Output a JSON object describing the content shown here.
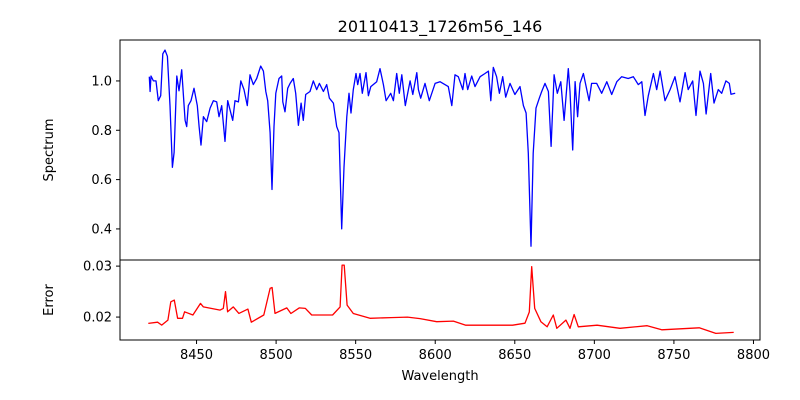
{
  "chart_data": [
    {
      "type": "line",
      "title": "20110413_1726m56_146",
      "xlabel": "",
      "ylabel": "Spectrum",
      "xlim": [
        8401.9,
        8804.1
      ],
      "ylim": [
        0.274,
        1.166
      ],
      "yticks": [
        "0.4",
        "0.6",
        "0.8",
        "1.0"
      ],
      "xticks": [],
      "grid": false,
      "series": [
        {
          "name": "spectrum",
          "color": "#0000ff",
          "x": [
            8420.3,
            8420.8,
            8421.4,
            8422.9,
            8424.5,
            8426.0,
            8427.5,
            8428.8,
            8430.2,
            8431.7,
            8433.3,
            8434.8,
            8435.9,
            8437.6,
            8439.0,
            8440.7,
            8442.8,
            8443.8,
            8444.8,
            8446.5,
            8448.4,
            8450.5,
            8451.6,
            8452.8,
            8454.3,
            8456.4,
            8458.5,
            8460.6,
            8462.7,
            8464.1,
            8465.8,
            8467.9,
            8469.6,
            8472.7,
            8474.2,
            8476.3,
            8477.8,
            8479.8,
            8481.9,
            8483.6,
            8485.7,
            8487.8,
            8490.3,
            8492.0,
            8493.5,
            8494.7,
            8496.2,
            8497.4,
            8498.7,
            8499.8,
            8501.8,
            8503.5,
            8504.2,
            8505.6,
            8507.3,
            8508.8,
            8510.8,
            8512.3,
            8514.0,
            8515.7,
            8517.1,
            8518.6,
            8521.3,
            8523.4,
            8525.5,
            8527.2,
            8529.7,
            8531.8,
            8533.5,
            8536.0,
            8538.1,
            8539.5,
            8541.2,
            8542.7,
            8544.4,
            8545.8,
            8547.1,
            8548.5,
            8550.2,
            8551.3,
            8552.7,
            8554.2,
            8556.5,
            8558.0,
            8559.5,
            8563.2,
            8565.3,
            8567.4,
            8569.1,
            8572.0,
            8573.7,
            8575.8,
            8577.4,
            8579.0,
            8581.2,
            8584.2,
            8585.9,
            8588.4,
            8589.4,
            8590.9,
            8593.6,
            8596.3,
            8599.9,
            8603.0,
            8608.2,
            8610.4,
            8612.4,
            8614.5,
            8617.3,
            8618.7,
            8620.4,
            8622.9,
            8625.0,
            8628.2,
            8631.3,
            8633.4,
            8634.9,
            8636.5,
            8638.6,
            8640.3,
            8642.4,
            8644.3,
            8647.0,
            8650.1,
            8653.3,
            8655.4,
            8657.1,
            8658.5,
            8660.2,
            8661.6,
            8663.3,
            8665.4,
            8666.9,
            8669.0,
            8671.1,
            8672.8,
            8674.7,
            8676.7,
            8678.9,
            8681.0,
            8683.6,
            8684.7,
            8686.4,
            8687.9,
            8689.5,
            8691.0,
            8693.1,
            8696.7,
            8698.3,
            8701.5,
            8704.6,
            8707.8,
            8710.9,
            8714.1,
            8717.2,
            8721.3,
            8724.5,
            8727.6,
            8729.8,
            8731.8,
            8733.9,
            8737.1,
            8739.2,
            8741.3,
            8744.4,
            8747.6,
            8750.7,
            8753.8,
            8757.0,
            8759.0,
            8761.8,
            8763.9,
            8766.4,
            8768.5,
            8770.2,
            8773.1,
            8775.2,
            8777.9,
            8780.0,
            8782.7,
            8784.8,
            8785.9,
            8788.5
          ],
          "y": [
            1.017,
            0.957,
            1.02,
            1.0,
            1.0,
            0.92,
            0.94,
            1.11,
            1.125,
            1.1,
            0.9,
            0.65,
            0.71,
            1.02,
            0.96,
            1.045,
            0.84,
            0.815,
            0.9,
            0.92,
            0.97,
            0.9,
            0.815,
            0.74,
            0.855,
            0.835,
            0.89,
            0.92,
            0.915,
            0.855,
            0.9,
            0.755,
            0.92,
            0.84,
            0.92,
            0.915,
            1.0,
            0.965,
            0.9,
            1.025,
            0.985,
            1.01,
            1.06,
            1.04,
            0.957,
            0.92,
            0.79,
            0.56,
            0.815,
            0.95,
            1.01,
            1.02,
            0.915,
            0.875,
            0.97,
            0.99,
            1.01,
            0.95,
            0.82,
            0.91,
            0.84,
            0.945,
            0.957,
            1.0,
            0.965,
            0.99,
            0.957,
            0.985,
            0.93,
            0.91,
            0.815,
            0.79,
            0.4,
            0.65,
            0.855,
            0.95,
            0.87,
            0.965,
            1.03,
            0.985,
            1.03,
            0.95,
            1.034,
            0.94,
            0.977,
            0.997,
            1.05,
            0.985,
            0.92,
            0.95,
            0.92,
            1.03,
            0.95,
            1.025,
            0.9,
            1.0,
            0.945,
            1.034,
            0.965,
            0.93,
            0.99,
            0.92,
            0.99,
            0.997,
            0.977,
            0.9,
            1.025,
            1.017,
            0.965,
            1.03,
            0.965,
            1.02,
            0.977,
            1.017,
            1.03,
            1.04,
            0.92,
            1.055,
            1.017,
            0.95,
            1.017,
            0.934,
            0.99,
            0.945,
            0.977,
            0.9,
            0.87,
            0.707,
            0.33,
            0.707,
            0.89,
            0.93,
            0.957,
            0.99,
            0.957,
            0.735,
            1.025,
            0.95,
            0.997,
            0.84,
            1.05,
            0.957,
            0.72,
            0.997,
            0.855,
            0.99,
            1.03,
            0.92,
            0.99,
            0.99,
            0.95,
            0.997,
            0.945,
            0.997,
            1.017,
            1.01,
            1.017,
            0.985,
            0.997,
            0.86,
            0.94,
            1.03,
            0.965,
            1.04,
            0.92,
            0.965,
            1.017,
            0.915,
            1.034,
            0.965,
            1.0,
            0.86,
            1.04,
            0.99,
            0.866,
            1.03,
            0.91,
            0.965,
            0.95,
            1.0,
            0.99,
            0.946,
            0.95
          ]
        }
      ]
    },
    {
      "type": "line",
      "title": "",
      "xlabel": "Wavelength",
      "ylabel": "Error",
      "xlim": [
        8401.9,
        8804.1
      ],
      "ylim": [
        0.0155,
        0.0312
      ],
      "yticks": [
        "0.02",
        "0.03"
      ],
      "xticks": [
        "8450",
        "8500",
        "8550",
        "8600",
        "8650",
        "8700",
        "8750",
        "8800"
      ],
      "grid": false,
      "series": [
        {
          "name": "error",
          "color": "#ff0000",
          "x": [
            8419.7,
            8425.5,
            8428.1,
            8432.0,
            8433.8,
            8436.0,
            8438.1,
            8441.2,
            8442.5,
            8447.7,
            8452.5,
            8454.3,
            8464.8,
            8466.8,
            8468.2,
            8469.5,
            8473.1,
            8476.6,
            8482.3,
            8484.4,
            8492.3,
            8496.2,
            8497.5,
            8499.3,
            8506.7,
            8509.3,
            8514.5,
            8518.4,
            8522.4,
            8535.5,
            8540.2,
            8541.5,
            8542.8,
            8544.6,
            8548.5,
            8559.0,
            8572.1,
            8582.6,
            8590.4,
            8600.9,
            8611.4,
            8619.2,
            8632.4,
            8648.6,
            8656.4,
            8659.1,
            8660.6,
            8662.5,
            8666.4,
            8670.3,
            8674.2,
            8676.4,
            8682.1,
            8684.7,
            8687.3,
            8689.9,
            8701.7,
            8716.1,
            8733.2,
            8742.3,
            8765.9,
            8776.3,
            8787.6
          ],
          "y": [
            0.01876,
            0.019,
            0.01843,
            0.01941,
            0.023,
            0.02333,
            0.01975,
            0.01975,
            0.02104,
            0.0204,
            0.02268,
            0.022,
            0.02137,
            0.0217,
            0.025,
            0.02104,
            0.022,
            0.02073,
            0.02157,
            0.019,
            0.0204,
            0.02563,
            0.0258,
            0.02073,
            0.0218,
            0.0207,
            0.0218,
            0.0217,
            0.0204,
            0.0204,
            0.022,
            0.0302,
            0.0302,
            0.02235,
            0.0207,
            0.01975,
            0.0199,
            0.02,
            0.0197,
            0.0191,
            0.0192,
            0.0184,
            0.0184,
            0.0184,
            0.0188,
            0.021,
            0.0299,
            0.0217,
            0.0191,
            0.0181,
            0.0204,
            0.0178,
            0.0194,
            0.0178,
            0.0205,
            0.0181,
            0.0184,
            0.0178,
            0.0183,
            0.0175,
            0.0179,
            0.0168,
            0.017
          ]
        }
      ]
    }
  ]
}
